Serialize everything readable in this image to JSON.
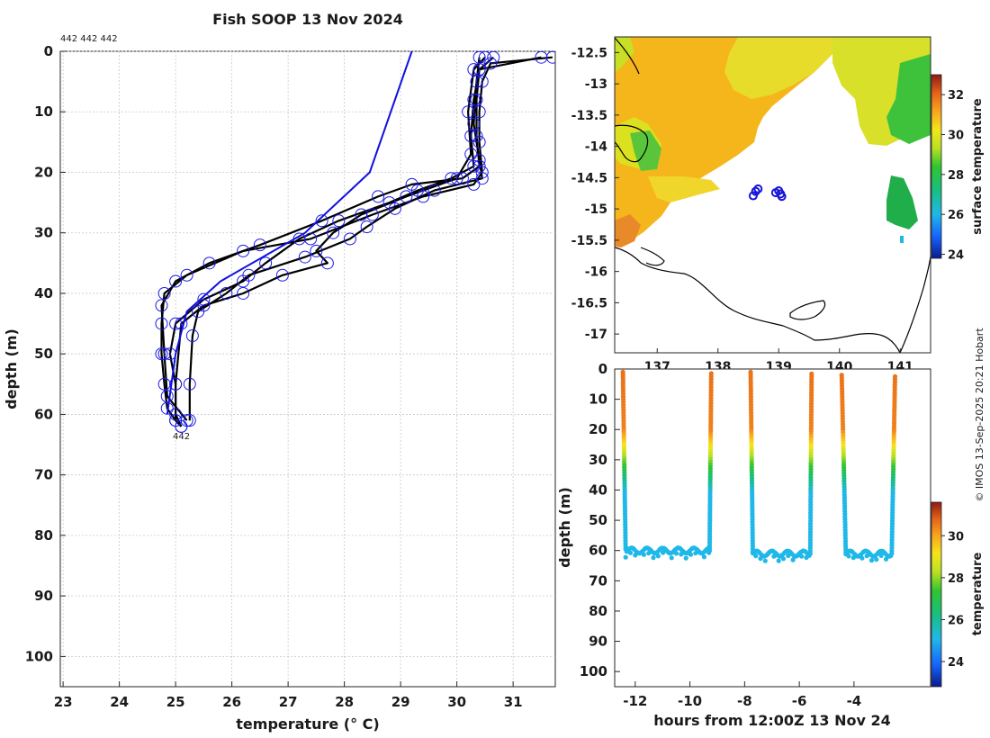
{
  "title": "Fish SOOP 13 Nov 2024",
  "credit": "© IMOS 13-Sep-2025 20:21 Hobart",
  "profile_plot": {
    "header_labels": "442 442 442",
    "end_label": "442",
    "xlabel": "temperature (° C)",
    "ylabel": "depth (m)"
  },
  "map_plot": {
    "colorbar_label": "surface temperature",
    "colorbar_ticks": [
      "24",
      "26",
      "28",
      "30",
      "32"
    ],
    "colorbar_range": [
      23.8,
      33.0
    ]
  },
  "section_plot": {
    "xlabel": "hours from 12:00Z 13 Nov 24",
    "ylabel": "depth (m)",
    "colorbar_label": "temperature",
    "colorbar_ticks": [
      "24",
      "26",
      "28",
      "30"
    ],
    "colorbar_range": [
      22.8,
      31.6
    ]
  },
  "chart_data": [
    {
      "type": "line",
      "title": "Fish SOOP 13 Nov 2024",
      "xlabel": "temperature (° C)",
      "ylabel": "depth (m)",
      "xlim": [
        22.95,
        31.75
      ],
      "ylim": [
        0,
        105
      ],
      "y_reversed": true,
      "x_ticks": [
        23,
        24,
        25,
        26,
        27,
        28,
        29,
        30,
        31
      ],
      "y_ticks": [
        0,
        10,
        20,
        30,
        40,
        50,
        60,
        70,
        80,
        90,
        100
      ],
      "grid": true,
      "series": [
        {
          "name": "profile 1",
          "color": "#000000",
          "markers": true,
          "points": [
            [
              31.7,
              1
            ],
            [
              30.6,
              2
            ],
            [
              30.45,
              5
            ],
            [
              30.4,
              10
            ],
            [
              30.4,
              15
            ],
            [
              30.45,
              20
            ],
            [
              30.3,
              22
            ],
            [
              29.4,
              24
            ],
            [
              28.5,
              27
            ],
            [
              27.4,
              31
            ],
            [
              26.2,
              33
            ],
            [
              25.2,
              37
            ],
            [
              24.8,
              40
            ],
            [
              24.75,
              45
            ],
            [
              24.75,
              50
            ],
            [
              24.8,
              55
            ],
            [
              24.85,
              59
            ],
            [
              25.0,
              61
            ],
            [
              25.1,
              62
            ]
          ]
        },
        {
          "name": "profile 2",
          "color": "#000000",
          "markers": true,
          "points": [
            [
              31.5,
              1
            ],
            [
              30.4,
              3
            ],
            [
              30.35,
              8
            ],
            [
              30.35,
              14
            ],
            [
              30.4,
              19
            ],
            [
              30.1,
              21
            ],
            [
              29.2,
              22
            ],
            [
              28.6,
              24
            ],
            [
              27.6,
              28
            ],
            [
              26.5,
              32
            ],
            [
              25.6,
              35
            ],
            [
              25.0,
              38
            ],
            [
              24.75,
              42
            ],
            [
              24.8,
              50
            ],
            [
              24.85,
              57
            ],
            [
              25.2,
              61
            ]
          ]
        },
        {
          "name": "profile 3",
          "color": "#000000",
          "markers": true,
          "points": [
            [
              30.65,
              1
            ],
            [
              30.4,
              3
            ],
            [
              30.3,
              8
            ],
            [
              30.25,
              14
            ],
            [
              30.3,
              19
            ],
            [
              29.9,
              21
            ],
            [
              29.3,
              23
            ],
            [
              28.8,
              25
            ],
            [
              27.9,
              28
            ],
            [
              27.2,
              31
            ],
            [
              26.6,
              35
            ],
            [
              26.2,
              38
            ],
            [
              25.5,
              41
            ],
            [
              25.0,
              45
            ],
            [
              24.9,
              50
            ],
            [
              25.0,
              55
            ],
            [
              25.0,
              60
            ],
            [
              25.1,
              62
            ]
          ]
        },
        {
          "name": "profile 4",
          "color": "#000000",
          "markers": true,
          "points": [
            [
              30.5,
              1
            ],
            [
              30.3,
              3
            ],
            [
              30.2,
              10
            ],
            [
              30.25,
              17
            ],
            [
              30.0,
              21
            ],
            [
              29.1,
              24
            ],
            [
              28.3,
              27
            ],
            [
              27.8,
              30
            ],
            [
              27.5,
              33
            ],
            [
              27.7,
              35
            ],
            [
              26.9,
              37
            ],
            [
              26.2,
              40
            ],
            [
              25.5,
              42
            ],
            [
              25.1,
              45
            ],
            [
              25.0,
              55
            ],
            [
              25.0,
              61
            ]
          ]
        },
        {
          "name": "profile 5",
          "color": "#000000",
          "markers": true,
          "points": [
            [
              30.4,
              1
            ],
            [
              30.35,
              5
            ],
            [
              30.3,
              12
            ],
            [
              30.4,
              18
            ],
            [
              30.45,
              21
            ],
            [
              29.6,
              23
            ],
            [
              28.9,
              26
            ],
            [
              28.4,
              29
            ],
            [
              28.1,
              31
            ],
            [
              27.3,
              34
            ],
            [
              26.3,
              37
            ],
            [
              25.9,
              40
            ],
            [
              25.4,
              43
            ],
            [
              25.3,
              47
            ],
            [
              25.25,
              55
            ],
            [
              25.25,
              61
            ]
          ]
        },
        {
          "name": "climatology",
          "color": "#1010e0",
          "markers": false,
          "points": [
            [
              29.2,
              0
            ],
            [
              28.45,
              20
            ],
            [
              27.3,
              30
            ],
            [
              25.8,
              38
            ],
            [
              25.2,
              43
            ],
            [
              25.0,
              50
            ],
            [
              24.85,
              60
            ]
          ]
        }
      ]
    },
    {
      "type": "heatmap",
      "title": "",
      "colorbar_label": "surface temperature",
      "x_ticks": [
        137,
        138,
        139,
        140,
        141
      ],
      "y_ticks": [
        -12.5,
        -13,
        -13.5,
        -14,
        -14.5,
        -15,
        -15.5,
        -16,
        -16.5,
        -17
      ],
      "xlim": [
        136.3,
        141.5
      ],
      "ylim": [
        -17.3,
        -12.25
      ],
      "colorbar_range": [
        23.8,
        33.0
      ],
      "track_points": [
        [
          138.58,
          -14.79
        ],
        [
          138.62,
          -14.72
        ],
        [
          138.66,
          -14.68
        ],
        [
          138.95,
          -14.74
        ],
        [
          139.0,
          -14.71
        ],
        [
          139.03,
          -14.76
        ],
        [
          139.05,
          -14.8
        ]
      ]
    },
    {
      "type": "scatter",
      "title": "",
      "xlabel": "hours from 12:00Z 13 Nov 24",
      "ylabel": "depth (m)",
      "colorbar_label": "temperature",
      "xlim": [
        -12.75,
        -1.2
      ],
      "ylim": [
        0,
        105
      ],
      "x_ticks": [
        -12,
        -10,
        -8,
        -6,
        -4
      ],
      "y_ticks": [
        0,
        10,
        20,
        30,
        40,
        50,
        60,
        70,
        80,
        90,
        100
      ],
      "colorbar_range": [
        22.8,
        31.6
      ],
      "casts": [
        {
          "t_start": -12.45,
          "t_bottom_start": -12.35,
          "t_bottom_end": -9.28,
          "t_end": -9.22,
          "top_depth": 1,
          "bottom_depth": 60
        },
        {
          "t_start": -7.78,
          "t_bottom_start": -7.7,
          "t_bottom_end": -5.6,
          "t_end": -5.55,
          "top_depth": 1,
          "bottom_depth": 61
        },
        {
          "t_start": -4.45,
          "t_bottom_start": -4.3,
          "t_bottom_end": -2.62,
          "t_end": -2.5,
          "top_depth": 2,
          "bottom_depth": 61
        }
      ]
    }
  ]
}
